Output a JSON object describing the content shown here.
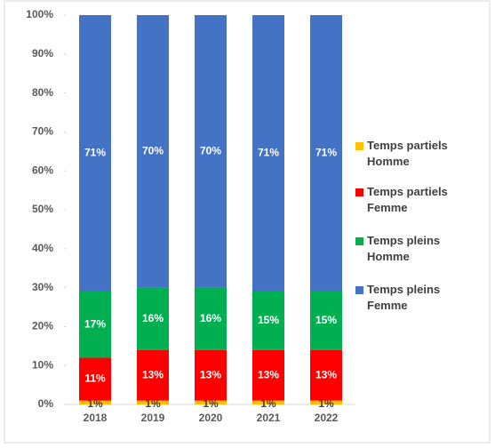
{
  "chart_data": {
    "type": "stacked_bar",
    "categories": [
      "2018",
      "2019",
      "2020",
      "2021",
      "2022"
    ],
    "series": [
      {
        "name": "Temps partiels Homme",
        "color": "#ffc000",
        "values": [
          1,
          1,
          1,
          1,
          1
        ],
        "value_labels": [
          "1%",
          "1%",
          "1%",
          "1%",
          "1%"
        ]
      },
      {
        "name": "Temps partiels Femme",
        "color": "#ff0000",
        "values": [
          11,
          13,
          13,
          13,
          13
        ],
        "value_labels": [
          "11%",
          "13%",
          "13%",
          "13%",
          "13%"
        ]
      },
      {
        "name": "Temps pleins Homme",
        "color": "#00b050",
        "values": [
          17,
          16,
          16,
          15,
          15
        ],
        "value_labels": [
          "17%",
          "16%",
          "16%",
          "15%",
          "15%"
        ]
      },
      {
        "name": "Temps pleins Femme",
        "color": "#4472c4",
        "values": [
          71,
          70,
          70,
          71,
          71
        ],
        "value_labels": [
          "71%",
          "70%",
          "70%",
          "71%",
          "71%"
        ]
      }
    ],
    "ylim": [
      0,
      100
    ],
    "yticks": [
      {
        "value": 0,
        "label": "0%"
      },
      {
        "value": 10,
        "label": "10%"
      },
      {
        "value": 20,
        "label": "20%"
      },
      {
        "value": 30,
        "label": "30%"
      },
      {
        "value": 40,
        "label": "40%"
      },
      {
        "value": 50,
        "label": "50%"
      },
      {
        "value": 60,
        "label": "60%"
      },
      {
        "value": 70,
        "label": "70%"
      },
      {
        "value": 80,
        "label": "80%"
      },
      {
        "value": 90,
        "label": "90%"
      },
      {
        "value": 100,
        "label": "100%"
      }
    ],
    "legend": "right"
  }
}
